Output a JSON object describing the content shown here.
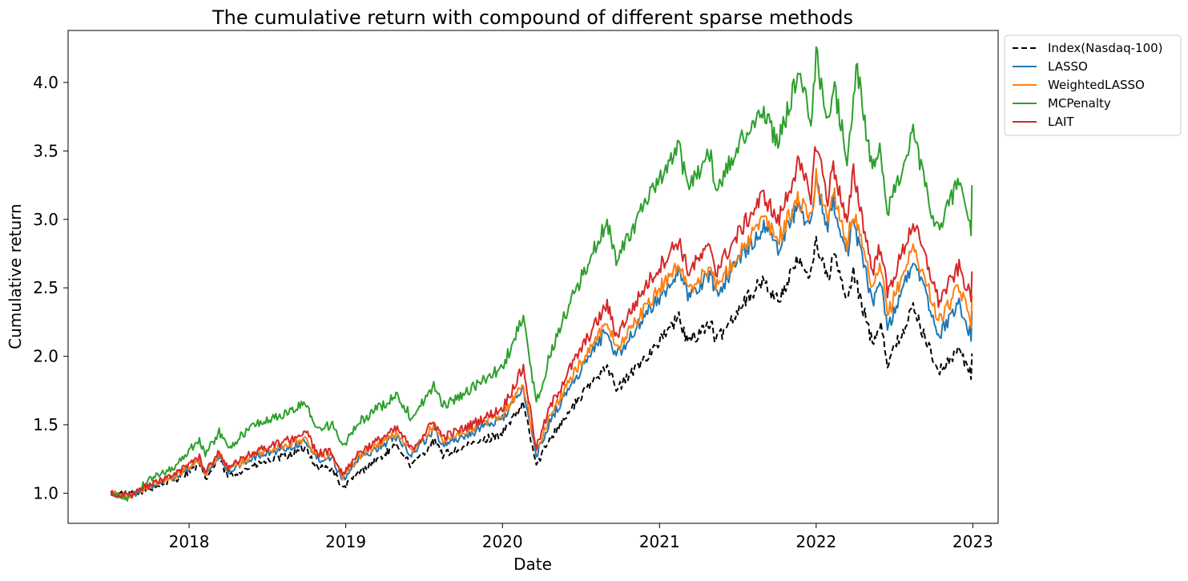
{
  "chart_data": {
    "type": "line",
    "title": "The cumulative return with compound of different sparse methods",
    "xlabel": "Date",
    "ylabel": "Cumulative return",
    "xlim": [
      "2017-03-25",
      "2023-03-01"
    ],
    "ylim": [
      0.78,
      4.38
    ],
    "x_ticks": [
      "2018",
      "2019",
      "2020",
      "2021",
      "2022",
      "2023"
    ],
    "y_ticks": [
      "1.0",
      "1.5",
      "2.0",
      "2.5",
      "3.0",
      "3.5",
      "4.0"
    ],
    "grid": false,
    "legend_position": "outside-top-right",
    "series": [
      {
        "name": "Index(Nasdaq-100)",
        "color": "#000000",
        "dashed": true,
        "points": [
          [
            "2017-07-03",
            1.0
          ],
          [
            "2017-08-15",
            0.99
          ],
          [
            "2017-10-01",
            1.03
          ],
          [
            "2017-12-01",
            1.1
          ],
          [
            "2018-01-25",
            1.21
          ],
          [
            "2018-02-08",
            1.1
          ],
          [
            "2018-03-12",
            1.25
          ],
          [
            "2018-04-01",
            1.12
          ],
          [
            "2018-06-01",
            1.2
          ],
          [
            "2018-08-15",
            1.27
          ],
          [
            "2018-10-01",
            1.33
          ],
          [
            "2018-10-25",
            1.19
          ],
          [
            "2018-12-01",
            1.18
          ],
          [
            "2018-12-24",
            1.03
          ],
          [
            "2019-02-01",
            1.15
          ],
          [
            "2019-05-01",
            1.35
          ],
          [
            "2019-06-03",
            1.2
          ],
          [
            "2019-07-25",
            1.38
          ],
          [
            "2019-08-15",
            1.28
          ],
          [
            "2019-10-01",
            1.33
          ],
          [
            "2020-01-01",
            1.44
          ],
          [
            "2020-02-19",
            1.65
          ],
          [
            "2020-03-20",
            1.2
          ],
          [
            "2020-04-20",
            1.4
          ],
          [
            "2020-06-01",
            1.58
          ],
          [
            "2020-09-01",
            1.95
          ],
          [
            "2020-09-22",
            1.75
          ],
          [
            "2020-12-01",
            2.0
          ],
          [
            "2021-02-15",
            2.28
          ],
          [
            "2021-03-08",
            2.1
          ],
          [
            "2021-05-01",
            2.25
          ],
          [
            "2021-05-12",
            2.1
          ],
          [
            "2021-07-15",
            2.4
          ],
          [
            "2021-09-01",
            2.55
          ],
          [
            "2021-10-04",
            2.4
          ],
          [
            "2021-11-19",
            2.7
          ],
          [
            "2021-12-20",
            2.6
          ],
          [
            "2022-01-01",
            2.85
          ],
          [
            "2022-01-28",
            2.55
          ],
          [
            "2022-02-10",
            2.75
          ],
          [
            "2022-03-14",
            2.4
          ],
          [
            "2022-03-29",
            2.6
          ],
          [
            "2022-05-12",
            2.1
          ],
          [
            "2022-06-01",
            2.25
          ],
          [
            "2022-06-16",
            1.95
          ],
          [
            "2022-08-15",
            2.35
          ],
          [
            "2022-09-30",
            2.0
          ],
          [
            "2022-10-13",
            1.88
          ],
          [
            "2022-11-30",
            2.05
          ],
          [
            "2022-12-28",
            1.86
          ],
          [
            "2022-12-30",
            2.02
          ]
        ]
      },
      {
        "name": "LASSO",
        "color": "#1f77b4",
        "dashed": false,
        "points": [
          [
            "2017-07-03",
            1.0
          ],
          [
            "2017-08-15",
            0.98
          ],
          [
            "2017-10-01",
            1.04
          ],
          [
            "2017-12-01",
            1.12
          ],
          [
            "2018-01-25",
            1.24
          ],
          [
            "2018-02-08",
            1.13
          ],
          [
            "2018-03-12",
            1.28
          ],
          [
            "2018-04-01",
            1.16
          ],
          [
            "2018-06-01",
            1.26
          ],
          [
            "2018-08-15",
            1.33
          ],
          [
            "2018-10-01",
            1.38
          ],
          [
            "2018-10-25",
            1.25
          ],
          [
            "2018-12-01",
            1.26
          ],
          [
            "2018-12-24",
            1.1
          ],
          [
            "2019-02-01",
            1.25
          ],
          [
            "2019-05-01",
            1.42
          ],
          [
            "2019-06-03",
            1.28
          ],
          [
            "2019-07-25",
            1.46
          ],
          [
            "2019-08-15",
            1.36
          ],
          [
            "2019-10-01",
            1.41
          ],
          [
            "2020-01-01",
            1.55
          ],
          [
            "2020-02-19",
            1.76
          ],
          [
            "2020-03-20",
            1.27
          ],
          [
            "2020-04-20",
            1.52
          ],
          [
            "2020-06-01",
            1.75
          ],
          [
            "2020-09-01",
            2.2
          ],
          [
            "2020-09-22",
            2.0
          ],
          [
            "2020-12-01",
            2.3
          ],
          [
            "2021-02-15",
            2.62
          ],
          [
            "2021-03-08",
            2.43
          ],
          [
            "2021-05-01",
            2.6
          ],
          [
            "2021-05-12",
            2.45
          ],
          [
            "2021-07-15",
            2.75
          ],
          [
            "2021-09-01",
            2.95
          ],
          [
            "2021-10-04",
            2.8
          ],
          [
            "2021-11-19",
            3.1
          ],
          [
            "2021-12-20",
            2.95
          ],
          [
            "2022-01-01",
            3.25
          ],
          [
            "2022-01-28",
            2.95
          ],
          [
            "2022-02-10",
            3.15
          ],
          [
            "2022-03-14",
            2.75
          ],
          [
            "2022-03-29",
            2.98
          ],
          [
            "2022-05-12",
            2.4
          ],
          [
            "2022-06-01",
            2.55
          ],
          [
            "2022-06-16",
            2.2
          ],
          [
            "2022-08-15",
            2.7
          ],
          [
            "2022-09-30",
            2.3
          ],
          [
            "2022-10-13",
            2.15
          ],
          [
            "2022-11-30",
            2.38
          ],
          [
            "2022-12-28",
            2.15
          ],
          [
            "2022-12-30",
            2.33
          ]
        ]
      },
      {
        "name": "WeightedLASSO",
        "color": "#ff7f0e",
        "dashed": false,
        "points": [
          [
            "2017-07-03",
            1.0
          ],
          [
            "2017-08-15",
            0.98
          ],
          [
            "2017-10-01",
            1.05
          ],
          [
            "2017-12-01",
            1.13
          ],
          [
            "2018-01-25",
            1.25
          ],
          [
            "2018-02-08",
            1.14
          ],
          [
            "2018-03-12",
            1.29
          ],
          [
            "2018-04-01",
            1.17
          ],
          [
            "2018-06-01",
            1.28
          ],
          [
            "2018-08-15",
            1.35
          ],
          [
            "2018-10-01",
            1.4
          ],
          [
            "2018-10-25",
            1.27
          ],
          [
            "2018-12-01",
            1.28
          ],
          [
            "2018-12-24",
            1.12
          ],
          [
            "2019-02-01",
            1.27
          ],
          [
            "2019-05-01",
            1.44
          ],
          [
            "2019-06-03",
            1.3
          ],
          [
            "2019-07-25",
            1.49
          ],
          [
            "2019-08-15",
            1.39
          ],
          [
            "2019-10-01",
            1.44
          ],
          [
            "2020-01-01",
            1.58
          ],
          [
            "2020-02-19",
            1.79
          ],
          [
            "2020-03-20",
            1.3
          ],
          [
            "2020-04-20",
            1.56
          ],
          [
            "2020-06-01",
            1.8
          ],
          [
            "2020-09-01",
            2.26
          ],
          [
            "2020-09-22",
            2.05
          ],
          [
            "2020-12-01",
            2.36
          ],
          [
            "2021-02-15",
            2.68
          ],
          [
            "2021-03-08",
            2.48
          ],
          [
            "2021-05-01",
            2.66
          ],
          [
            "2021-05-12",
            2.5
          ],
          [
            "2021-07-15",
            2.8
          ],
          [
            "2021-09-01",
            3.0
          ],
          [
            "2021-10-04",
            2.85
          ],
          [
            "2021-11-19",
            3.15
          ],
          [
            "2021-12-20",
            3.0
          ],
          [
            "2022-01-01",
            3.3
          ],
          [
            "2022-01-28",
            3.0
          ],
          [
            "2022-02-10",
            3.22
          ],
          [
            "2022-03-14",
            2.82
          ],
          [
            "2022-03-29",
            3.06
          ],
          [
            "2022-05-12",
            2.48
          ],
          [
            "2022-06-01",
            2.65
          ],
          [
            "2022-06-16",
            2.3
          ],
          [
            "2022-08-15",
            2.8
          ],
          [
            "2022-09-30",
            2.4
          ],
          [
            "2022-10-13",
            2.25
          ],
          [
            "2022-11-30",
            2.5
          ],
          [
            "2022-12-28",
            2.26
          ],
          [
            "2022-12-30",
            2.44
          ]
        ]
      },
      {
        "name": "MCPenalty",
        "color": "#2ca02c",
        "dashed": false,
        "points": [
          [
            "2017-07-03",
            1.0
          ],
          [
            "2017-08-10",
            0.96
          ],
          [
            "2017-10-01",
            1.1
          ],
          [
            "2017-12-01",
            1.2
          ],
          [
            "2018-01-25",
            1.4
          ],
          [
            "2018-02-08",
            1.28
          ],
          [
            "2018-03-12",
            1.45
          ],
          [
            "2018-04-01",
            1.33
          ],
          [
            "2018-06-01",
            1.5
          ],
          [
            "2018-08-15",
            1.58
          ],
          [
            "2018-10-01",
            1.66
          ],
          [
            "2018-10-25",
            1.47
          ],
          [
            "2018-12-01",
            1.5
          ],
          [
            "2018-12-24",
            1.33
          ],
          [
            "2019-02-01",
            1.52
          ],
          [
            "2019-05-01",
            1.72
          ],
          [
            "2019-06-03",
            1.55
          ],
          [
            "2019-07-25",
            1.78
          ],
          [
            "2019-08-15",
            1.64
          ],
          [
            "2019-10-01",
            1.72
          ],
          [
            "2020-01-01",
            1.92
          ],
          [
            "2020-02-19",
            2.28
          ],
          [
            "2020-03-20",
            1.65
          ],
          [
            "2020-04-20",
            2.0
          ],
          [
            "2020-06-01",
            2.35
          ],
          [
            "2020-09-01",
            2.98
          ],
          [
            "2020-09-22",
            2.72
          ],
          [
            "2020-12-01",
            3.12
          ],
          [
            "2021-02-15",
            3.52
          ],
          [
            "2021-03-08",
            3.25
          ],
          [
            "2021-05-01",
            3.48
          ],
          [
            "2021-05-12",
            3.2
          ],
          [
            "2021-07-15",
            3.6
          ],
          [
            "2021-09-01",
            3.8
          ],
          [
            "2021-10-04",
            3.55
          ],
          [
            "2021-11-19",
            4.05
          ],
          [
            "2021-12-20",
            3.75
          ],
          [
            "2022-01-01",
            4.2
          ],
          [
            "2022-01-28",
            3.7
          ],
          [
            "2022-02-10",
            4.0
          ],
          [
            "2022-03-14",
            3.45
          ],
          [
            "2022-03-29",
            3.85
          ],
          [
            "2022-04-04",
            4.15
          ],
          [
            "2022-05-12",
            3.35
          ],
          [
            "2022-06-01",
            3.5
          ],
          [
            "2022-06-16",
            3.05
          ],
          [
            "2022-08-15",
            3.62
          ],
          [
            "2022-09-30",
            3.0
          ],
          [
            "2022-10-13",
            2.92
          ],
          [
            "2022-11-30",
            3.3
          ],
          [
            "2022-12-28",
            2.92
          ],
          [
            "2022-12-30",
            3.25
          ]
        ]
      },
      {
        "name": "LAIT",
        "color": "#d62728",
        "dashed": false,
        "points": [
          [
            "2017-07-03",
            1.0
          ],
          [
            "2017-08-15",
            0.98
          ],
          [
            "2017-10-01",
            1.06
          ],
          [
            "2017-12-01",
            1.14
          ],
          [
            "2018-01-25",
            1.27
          ],
          [
            "2018-02-08",
            1.15
          ],
          [
            "2018-03-12",
            1.31
          ],
          [
            "2018-04-01",
            1.18
          ],
          [
            "2018-06-01",
            1.3
          ],
          [
            "2018-08-15",
            1.38
          ],
          [
            "2018-10-01",
            1.45
          ],
          [
            "2018-10-25",
            1.29
          ],
          [
            "2018-12-01",
            1.3
          ],
          [
            "2018-12-24",
            1.14
          ],
          [
            "2019-02-01",
            1.3
          ],
          [
            "2019-05-01",
            1.47
          ],
          [
            "2019-06-03",
            1.32
          ],
          [
            "2019-07-25",
            1.52
          ],
          [
            "2019-08-15",
            1.41
          ],
          [
            "2019-10-01",
            1.47
          ],
          [
            "2020-01-01",
            1.62
          ],
          [
            "2020-02-19",
            1.92
          ],
          [
            "2020-03-20",
            1.33
          ],
          [
            "2020-04-20",
            1.62
          ],
          [
            "2020-06-01",
            1.88
          ],
          [
            "2020-09-01",
            2.38
          ],
          [
            "2020-09-22",
            2.15
          ],
          [
            "2020-12-01",
            2.52
          ],
          [
            "2021-02-15",
            2.85
          ],
          [
            "2021-03-08",
            2.62
          ],
          [
            "2021-05-01",
            2.8
          ],
          [
            "2021-05-12",
            2.62
          ],
          [
            "2021-07-15",
            2.95
          ],
          [
            "2021-09-01",
            3.18
          ],
          [
            "2021-10-04",
            2.98
          ],
          [
            "2021-11-19",
            3.4
          ],
          [
            "2021-12-20",
            3.18
          ],
          [
            "2022-01-01",
            3.57
          ],
          [
            "2022-01-28",
            3.15
          ],
          [
            "2022-02-10",
            3.4
          ],
          [
            "2022-03-14",
            2.95
          ],
          [
            "2022-03-29",
            3.35
          ],
          [
            "2022-05-12",
            2.62
          ],
          [
            "2022-06-01",
            2.82
          ],
          [
            "2022-06-16",
            2.45
          ],
          [
            "2022-08-15",
            2.98
          ],
          [
            "2022-09-30",
            2.55
          ],
          [
            "2022-10-13",
            2.4
          ],
          [
            "2022-11-30",
            2.65
          ],
          [
            "2022-12-28",
            2.42
          ],
          [
            "2022-12-30",
            2.62
          ]
        ]
      }
    ]
  }
}
